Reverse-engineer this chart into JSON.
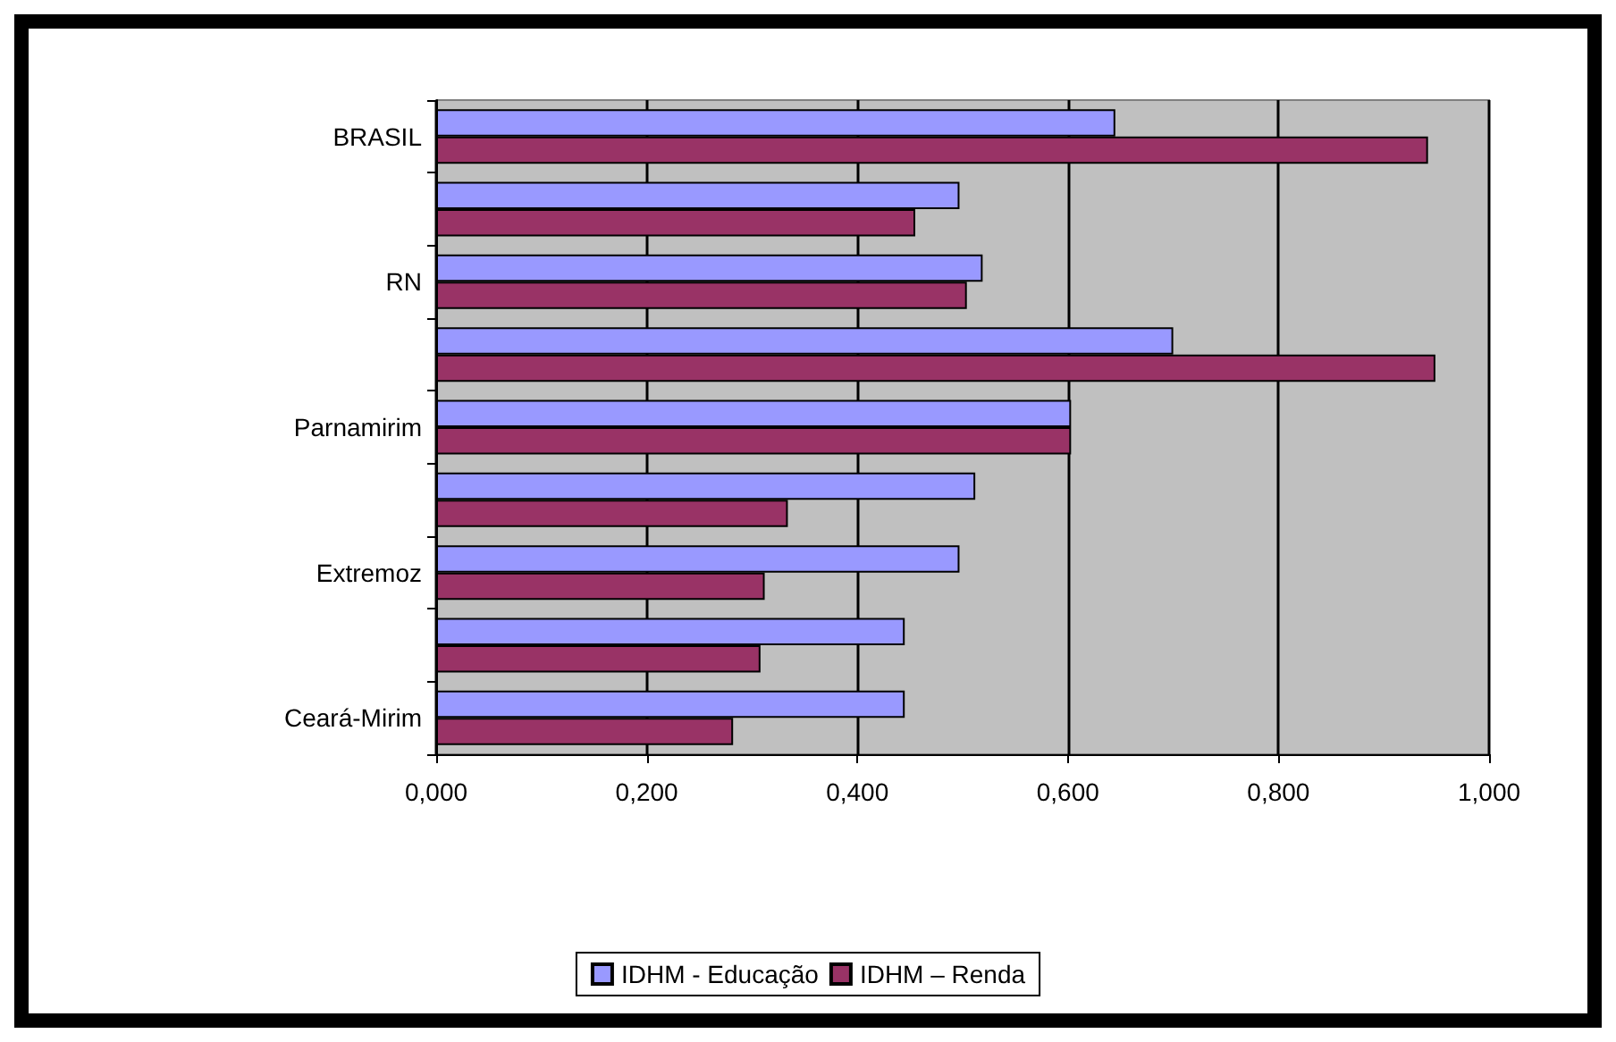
{
  "chart_data": {
    "type": "bar",
    "orientation": "horizontal",
    "categories": [
      "BRASIL",
      null,
      "RN",
      null,
      "Parnamirim",
      null,
      "Extremoz",
      null,
      "Ceará-Mirim"
    ],
    "series": [
      {
        "name": "IDHM - Educação",
        "color": "#9999ff",
        "values": [
          0.645,
          0.497,
          0.519,
          0.7,
          0.603,
          0.512,
          0.497,
          0.445,
          0.445
        ]
      },
      {
        "name": "IDHM – Renda",
        "color": "#993366",
        "values": [
          0.942,
          0.455,
          0.504,
          0.949,
          0.603,
          0.334,
          0.312,
          0.308,
          0.282
        ]
      }
    ],
    "xlim": [
      0,
      1
    ],
    "xticks": [
      {
        "value": 0,
        "label": "0,000"
      },
      {
        "value": 0.2,
        "label": "0,200"
      },
      {
        "value": 0.4,
        "label": "0,400"
      },
      {
        "value": 0.6,
        "label": "0,600"
      },
      {
        "value": 0.8,
        "label": "0,800"
      },
      {
        "value": 1,
        "label": "1,000"
      }
    ],
    "grid": "x",
    "legend": "bottom"
  }
}
